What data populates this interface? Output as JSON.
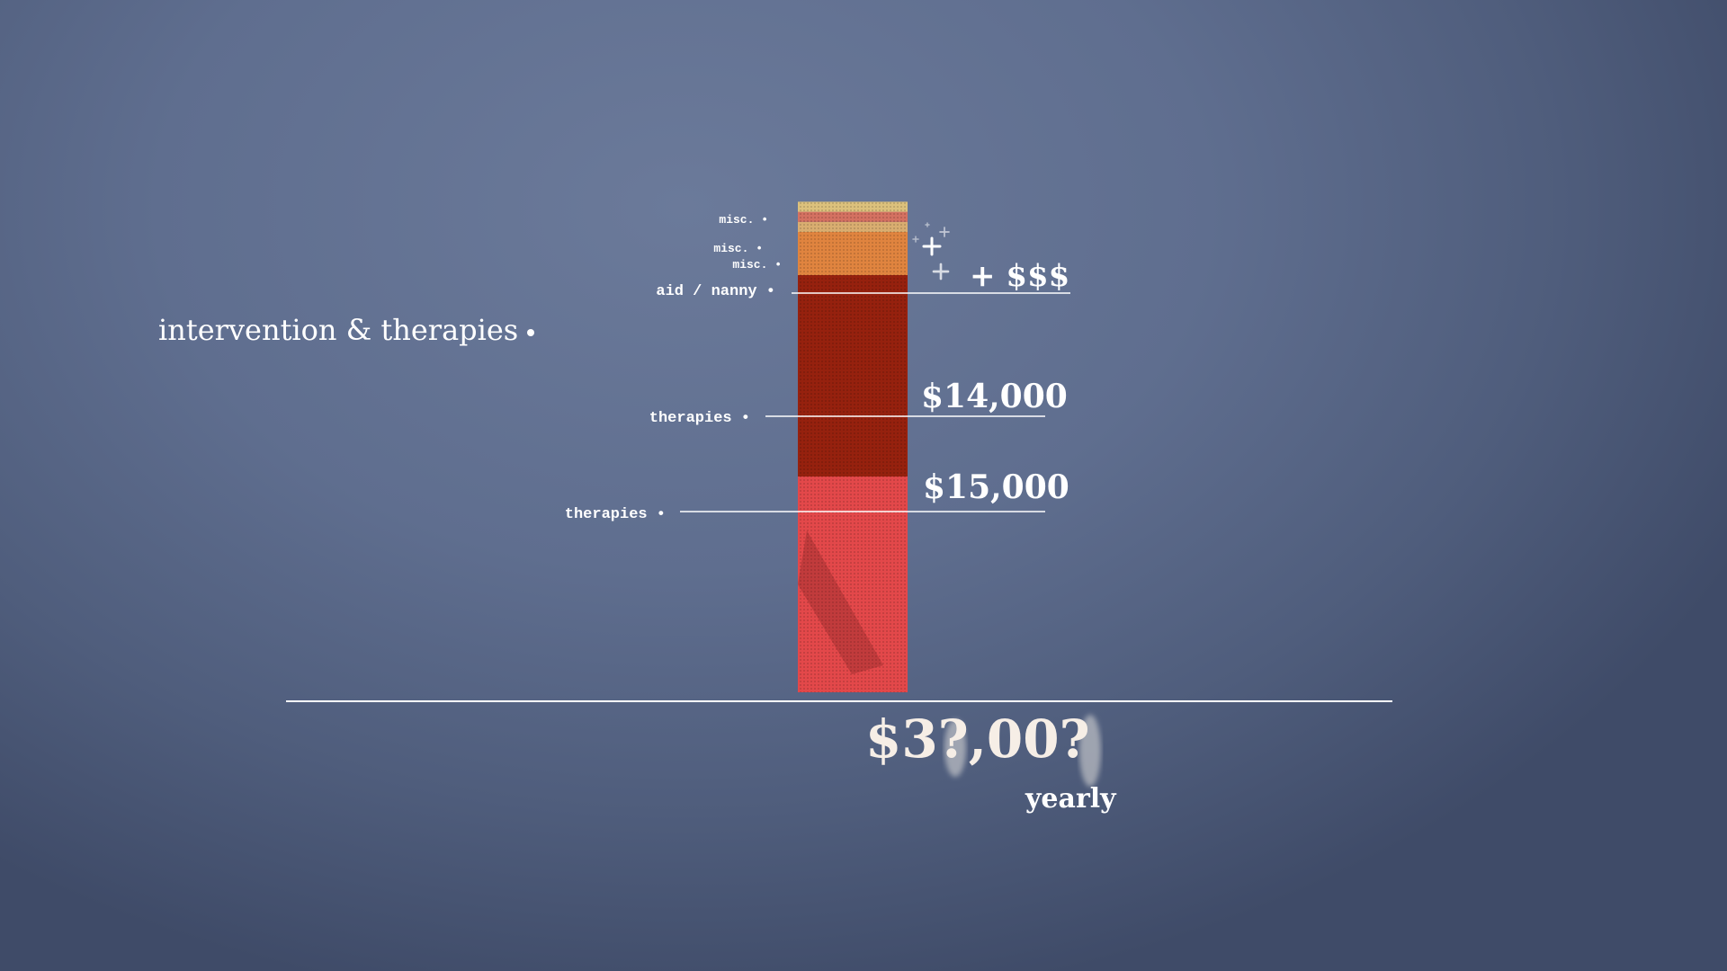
{
  "heading": "intervention & therapies",
  "chart_data": {
    "type": "bar",
    "stacked": true,
    "categories": [
      ""
    ],
    "series": [
      {
        "name": "therapies",
        "values": [
          15000
        ],
        "color": "#e3484a"
      },
      {
        "name": "therapies",
        "values": [
          14000
        ],
        "color": "#96210e"
      },
      {
        "name": "aid / nanny",
        "values": [
          3000
        ],
        "color": "#e0843f"
      },
      {
        "name": "misc.",
        "values": [
          700
        ],
        "color": "#d9ad70"
      },
      {
        "name": "misc.",
        "values": [
          700
        ],
        "color": "#d47161"
      },
      {
        "name": "misc.",
        "values": [
          700
        ],
        "color": "#dcc17c"
      }
    ],
    "annotations": [
      "$15,000",
      "$14,000",
      "+ $$$"
    ],
    "total": "$3?,00?",
    "period": "yearly",
    "grid": false,
    "legend": "none"
  }
}
